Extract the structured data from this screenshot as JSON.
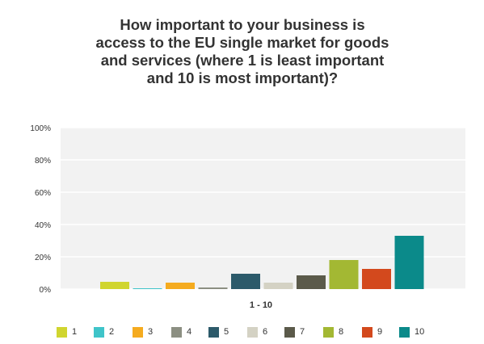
{
  "chart_data": {
    "type": "bar",
    "title": "How important to your business is\naccess to the EU single market for goods\nand services (where 1 is least important\nand 10 is most important)?",
    "xlabel": "1 - 10",
    "ylabel": "",
    "ylim": [
      0,
      100
    ],
    "yticks": [
      "0%",
      "20%",
      "40%",
      "60%",
      "80%",
      "100%"
    ],
    "grid": true,
    "legend_position": "bottom",
    "categories": [
      "1 - 10"
    ],
    "series": [
      {
        "name": "1",
        "values": [
          4.5
        ],
        "color": "#d0d52f"
      },
      {
        "name": "2",
        "values": [
          0.5
        ],
        "color": "#3fc4c9"
      },
      {
        "name": "3",
        "values": [
          4.0
        ],
        "color": "#f5ab1f"
      },
      {
        "name": "4",
        "values": [
          1.0
        ],
        "color": "#8c8f82"
      },
      {
        "name": "5",
        "values": [
          9.5
        ],
        "color": "#2c5a6a"
      },
      {
        "name": "6",
        "values": [
          4.0
        ],
        "color": "#d4d2c4"
      },
      {
        "name": "7",
        "values": [
          8.5
        ],
        "color": "#5b5a4a"
      },
      {
        "name": "8",
        "values": [
          18.0
        ],
        "color": "#a3b833"
      },
      {
        "name": "9",
        "values": [
          12.5
        ],
        "color": "#d3491d"
      },
      {
        "name": "10",
        "values": [
          33.0
        ],
        "color": "#0b8a8a"
      }
    ]
  }
}
